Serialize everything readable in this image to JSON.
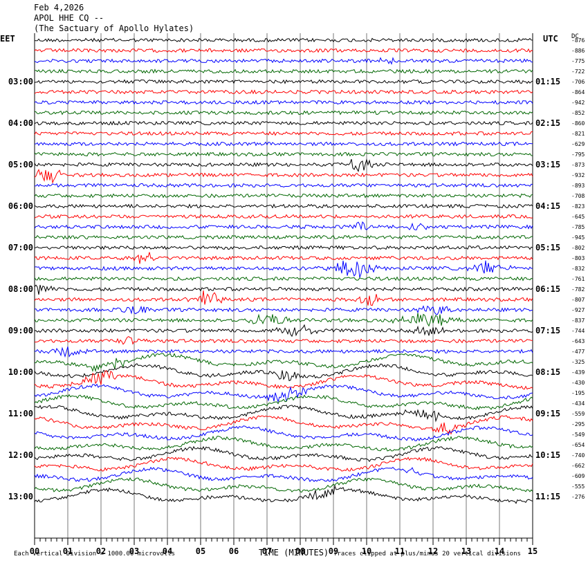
{
  "header": {
    "date": "Feb 4,2026",
    "station": "APOL HHE CQ --",
    "site": "(The Sactuary of Apollo Hylates)"
  },
  "left_tz": "EET",
  "right_tz": "UTC",
  "scale_unit": "DC",
  "footer": {
    "left_note": "Each Vertical Division = 1000.00 microvolts",
    "xlabel": "TIME (MINUTES)",
    "right_note": "Traces clipped at plus/minus 20 vertical divisions"
  },
  "chart_data": {
    "type": "line",
    "xlabel": "TIME (MINUTES)",
    "xlim": [
      0,
      15
    ],
    "x_ticks": [
      "00",
      "01",
      "02",
      "03",
      "04",
      "05",
      "06",
      "07",
      "08",
      "09",
      "10",
      "11",
      "12",
      "13",
      "14",
      "15"
    ],
    "trace_colors": [
      "#000000",
      "#ff0000",
      "#0000ff",
      "#006600"
    ],
    "left_hour_labels": [
      "03:00",
      "04:00",
      "05:00",
      "06:00",
      "07:00",
      "08:00",
      "09:00",
      "10:00",
      "11:00",
      "12:00",
      "13:00"
    ],
    "right_hour_labels": [
      "01:15",
      "02:15",
      "03:15",
      "04:15",
      "05:15",
      "06:15",
      "07:15",
      "08:15",
      "09:15",
      "10:15",
      "11:15"
    ],
    "dc_offsets": [
      "-876",
      "-886",
      "-775",
      "-722",
      "-706",
      "-864",
      "-942",
      "-852",
      "-860",
      "-821",
      "-629",
      "-795",
      "-873",
      "-932",
      "-893",
      "-708",
      "-823",
      "-645",
      "-785",
      "-945",
      "-802",
      "-803",
      "-832",
      "-761",
      "-782",
      "-807",
      "-927",
      "-837",
      "-744",
      "-643",
      "-477",
      "-325",
      "-439",
      "-430",
      "-195",
      "-434",
      "-559",
      "-295",
      "-549",
      "-654",
      "-740",
      "-662",
      "-609",
      "-555",
      "-276"
    ]
  }
}
